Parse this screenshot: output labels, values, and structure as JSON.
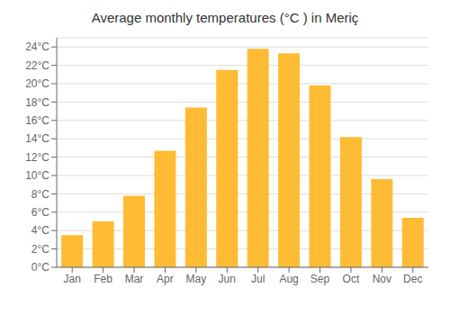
{
  "chart_data": {
    "type": "bar",
    "title": "Average monthly temperatures (°C ) in Meriç",
    "categories": [
      "Jan",
      "Feb",
      "Mar",
      "Apr",
      "May",
      "Jun",
      "Jul",
      "Aug",
      "Sep",
      "Oct",
      "Nov",
      "Dec"
    ],
    "values": [
      3.5,
      5.0,
      7.8,
      12.7,
      17.4,
      21.5,
      23.8,
      23.3,
      19.8,
      14.2,
      9.6,
      5.4
    ],
    "color": "#FFBB33",
    "ylim": [
      0,
      25
    ],
    "yticks": [
      {
        "value": 0,
        "label": "0°C"
      },
      {
        "value": 2,
        "label": "2°C"
      },
      {
        "value": 4,
        "label": "4°C"
      },
      {
        "value": 6,
        "label": "6°C"
      },
      {
        "value": 8,
        "label": "8°C"
      },
      {
        "value": 10,
        "label": "10°C"
      },
      {
        "value": 12,
        "label": "12°C"
      },
      {
        "value": 14,
        "label": "14°C"
      },
      {
        "value": 16,
        "label": "16°C"
      },
      {
        "value": 18,
        "label": "18°C"
      },
      {
        "value": 20,
        "label": "20°C"
      },
      {
        "value": 22,
        "label": "22°C"
      },
      {
        "value": 24,
        "label": "24°C"
      }
    ],
    "grid": true
  }
}
